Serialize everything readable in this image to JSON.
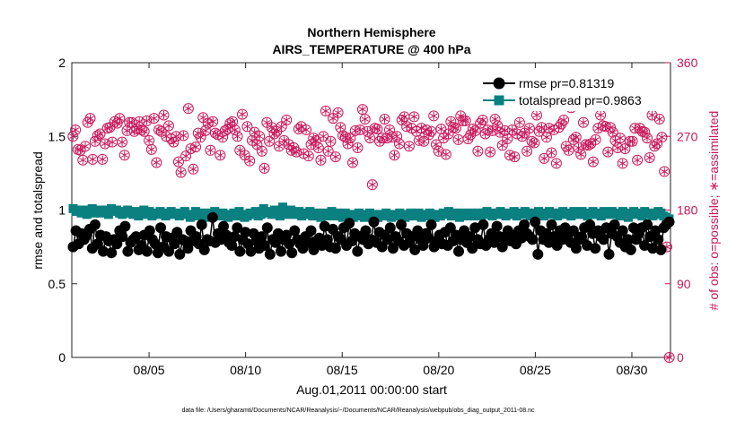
{
  "chart_data": {
    "type": "line",
    "title": "Northern Hemisphere",
    "subtitle": "AIRS_TEMPERATURE @ 400 hPa",
    "xlabel": "Aug.01,2011 00:00:00 start",
    "ylabel_left": "rmse and totalspread",
    "ylabel_right": "# of obs: o=possible; ∗=assimilated",
    "footnote": "data file: /Users/gharamti/Documents/NCAR/Reanalysis/~/Documents/NCAR/Reanalysis/webpub/obs_diag_output_2011-08.nc",
    "xlim": [
      1,
      32
    ],
    "ylim_left": [
      0,
      2
    ],
    "ylim_right": [
      0,
      360
    ],
    "x_ticks": [
      {
        "value": 5,
        "label": "08/05"
      },
      {
        "value": 10,
        "label": "08/10"
      },
      {
        "value": 15,
        "label": "08/15"
      },
      {
        "value": 20,
        "label": "08/20"
      },
      {
        "value": 25,
        "label": "08/25"
      },
      {
        "value": 30,
        "label": "08/30"
      }
    ],
    "y_ticks_left": [
      {
        "value": 0,
        "label": "0"
      },
      {
        "value": 0.5,
        "label": "0.5"
      },
      {
        "value": 1,
        "label": "1"
      },
      {
        "value": 1.5,
        "label": "1.5"
      },
      {
        "value": 2,
        "label": "2"
      }
    ],
    "y_ticks_right": [
      {
        "value": 0,
        "label": "0"
      },
      {
        "value": 90,
        "label": "90"
      },
      {
        "value": 180,
        "label": "180"
      },
      {
        "value": 270,
        "label": "270"
      },
      {
        "value": 360,
        "label": "360"
      }
    ],
    "legend_position": "top-right",
    "legend": [
      "rmse pr=0.81319",
      "totalspread pr=0.9863"
    ],
    "series": [
      {
        "name": "rmse pr=0.81319",
        "axis": "left",
        "color": "#000000",
        "values": [
          0.75,
          0.86,
          0.77,
          0.84,
          0.8,
          0.83,
          0.87,
          0.74,
          0.9,
          0.77,
          0.83,
          0.72,
          0.82,
          0.79,
          0.71,
          0.8,
          0.77,
          0.86,
          0.82,
          0.89,
          0.72,
          0.78,
          0.8,
          0.82,
          0.73,
          0.76,
          0.83,
          0.72,
          0.86,
          0.8,
          0.77,
          0.71,
          0.88,
          0.75,
          0.82,
          0.72,
          0.81,
          0.77,
          0.85,
          0.7,
          0.8,
          0.79,
          0.74,
          0.86,
          0.79,
          0.82,
          0.77,
          0.9,
          0.73,
          0.8,
          0.79,
          0.95,
          0.78,
          0.84,
          0.8,
          0.89,
          0.83,
          0.78,
          0.76,
          0.82,
          0.88,
          0.72,
          0.8,
          0.85,
          0.77,
          0.72,
          0.84,
          0.79,
          0.74,
          0.82,
          0.76,
          0.88,
          0.7,
          0.8,
          0.78,
          0.84,
          0.72,
          0.8,
          0.83,
          0.77,
          0.71,
          0.86,
          0.8,
          0.77,
          0.74,
          0.82,
          0.78,
          0.86,
          0.73,
          0.79,
          0.81,
          0.76,
          0.89,
          0.8,
          0.75,
          0.87,
          0.74,
          0.82,
          0.8,
          0.88,
          0.76,
          0.91,
          0.79,
          0.84,
          0.72,
          0.82,
          0.8,
          0.86,
          0.77,
          0.8,
          0.92,
          0.78,
          0.85,
          0.75,
          0.83,
          0.8,
          0.88,
          0.74,
          0.82,
          0.79,
          0.9,
          0.76,
          0.84,
          0.78,
          0.82,
          0.73,
          0.86,
          0.8,
          0.76,
          0.84,
          0.81,
          0.9,
          0.75,
          0.79,
          0.83,
          0.77,
          0.85,
          0.76,
          0.88,
          0.79,
          0.83,
          0.72,
          0.8,
          0.86,
          0.78,
          0.82,
          0.74,
          0.88,
          0.8,
          0.77,
          0.9,
          0.76,
          0.8,
          0.84,
          0.78,
          0.89,
          0.82,
          0.75,
          0.8,
          0.86,
          0.79,
          0.83,
          0.77,
          0.86,
          0.81,
          0.9,
          0.84,
          0.82,
          0.8,
          0.92,
          0.7,
          0.86,
          0.8,
          0.84,
          0.78,
          0.9,
          0.82,
          0.76,
          0.86,
          0.8,
          0.88,
          0.83,
          0.78,
          0.86,
          0.74,
          0.8,
          0.82,
          0.88,
          0.76,
          0.9,
          0.84,
          0.74,
          0.86,
          0.82,
          0.8,
          0.88,
          0.7,
          0.84,
          0.9,
          0.82,
          0.78,
          0.86,
          0.75,
          0.8,
          0.73,
          0.88,
          0.8,
          0.84,
          0.88,
          0.76,
          0.9,
          0.82,
          0.74,
          0.86,
          0.8,
          0.73,
          0.88,
          0.9,
          0.92
        ]
      },
      {
        "name": "totalspread pr=0.9863",
        "axis": "left",
        "color": "#0a8080",
        "values": [
          1.01,
          0.99,
          1.0,
          0.98,
          1.0,
          0.97,
          0.99,
          1.01,
          0.98,
          1.0,
          0.98,
          1.0,
          0.99,
          0.97,
          1.01,
          0.99,
          1.0,
          0.98,
          0.97,
          0.99,
          1.0,
          0.98,
          0.97,
          0.99,
          0.96,
          0.98,
          1.0,
          0.97,
          0.99,
          0.96,
          0.98,
          0.97,
          0.99,
          0.97,
          0.96,
          0.98,
          0.99,
          0.97,
          0.98,
          0.96,
          0.97,
          0.99,
          0.97,
          0.95,
          0.97,
          0.99,
          0.96,
          0.98,
          0.97,
          0.95,
          0.98,
          0.97,
          0.99,
          0.96,
          0.97,
          0.98,
          0.96,
          0.95,
          0.97,
          0.98,
          0.96,
          0.99,
          0.97,
          0.95,
          0.96,
          0.98,
          0.97,
          0.99,
          0.96,
          0.97,
          1.01,
          0.98,
          0.99,
          0.97,
          1.0,
          0.98,
          0.96,
          1.02,
          0.99,
          0.97,
          1.0,
          0.98,
          0.97,
          0.99,
          0.96,
          0.98,
          0.97,
          0.99,
          0.96,
          0.98,
          0.97,
          0.95,
          0.98,
          0.96,
          0.97,
          0.99,
          0.96,
          0.98,
          0.97,
          0.95,
          0.98,
          0.96,
          0.97,
          0.95,
          0.96,
          0.98,
          0.97,
          0.95,
          0.96,
          0.98,
          0.96,
          0.97,
          0.95,
          0.97,
          0.96,
          0.98,
          0.96,
          0.95,
          0.97,
          0.96,
          0.98,
          0.97,
          0.95,
          0.96,
          0.98,
          0.97,
          0.96,
          0.98,
          0.95,
          0.97,
          0.96,
          0.98,
          0.97,
          0.95,
          0.97,
          0.96,
          0.98,
          0.97,
          0.99,
          0.96,
          0.98,
          0.97,
          0.95,
          0.98,
          0.96,
          0.97,
          0.98,
          0.96,
          0.97,
          0.98,
          0.96,
          0.98,
          0.99,
          0.97,
          0.96,
          0.98,
          0.97,
          0.99,
          0.97,
          0.96,
          0.98,
          0.97,
          0.99,
          0.96,
          0.98,
          0.97,
          0.99,
          0.98,
          0.96,
          0.98,
          0.97,
          0.99,
          0.97,
          0.96,
          0.98,
          0.99,
          0.97,
          0.98,
          0.96,
          0.98,
          0.99,
          0.97,
          0.98,
          0.96,
          0.99,
          0.97,
          0.98,
          0.99,
          0.97,
          0.96,
          0.98,
          0.99,
          0.97,
          0.98,
          0.96,
          0.99,
          0.97,
          0.98,
          0.99,
          0.97,
          0.98,
          0.96,
          0.99,
          0.97,
          0.95,
          0.98,
          0.99,
          0.97,
          0.98,
          0.96,
          0.99,
          0.97,
          0.98,
          0.96,
          0.97,
          0.99,
          0.98,
          0.96,
          0.95,
          0.94
        ]
      },
      {
        "name": "# of obs",
        "axis": "right",
        "color": "#c8175a",
        "values": [
          270,
          278,
          254,
          253,
          241,
          258,
          287,
          292,
          242,
          264,
          271,
          273,
          242,
          261,
          280,
          281,
          263,
          288,
          286,
          292,
          263,
          247,
          277,
          287,
          287,
          276,
          279,
          288,
          278,
          276,
          289,
          265,
          254,
          292,
          238,
          278,
          276,
          296,
          270,
          283,
          267,
          263,
          270,
          239,
          226,
          271,
          246,
          304,
          255,
          230,
          257,
          274,
          269,
          293,
          277,
          286,
          253,
          288,
          274,
          272,
          247,
          269,
          277,
          279,
          286,
          288,
          278,
          270,
          253,
          297,
          247,
          282,
          240,
          265,
          275,
          260,
          270,
          252,
          231,
          287,
          264,
          281,
          273,
          276,
          258,
          282,
          265,
          290,
          260,
          253,
          256,
          251,
          279,
          282,
          249,
          278,
          246,
          260,
          268,
          265,
          256,
          241,
          270,
          301,
          252,
          264,
          292,
          245,
          299,
          281,
          271,
          269,
          261,
          268,
          238,
          277,
          256,
          278,
          303,
          291,
          276,
          268,
          211,
          280,
          279,
          264,
          268,
          291,
          268,
          278,
          269,
          247,
          270,
          261,
          290,
          294,
          282,
          258,
          280,
          294,
          276,
          265,
          280,
          264,
          278,
          272,
          276,
          295,
          260,
          252,
          279,
          268,
          248,
          273,
          288,
          281,
          280,
          266,
          295,
          289,
          289,
          267,
          272,
          279,
          277,
          252,
          286,
          290,
          273,
          278,
          251,
          277,
          291,
          283,
          275,
          259,
          277,
          267,
          247,
          278,
          245,
          273,
          287,
          270,
          274,
          252,
          280,
          264,
          262,
          296,
          276,
          281,
          243,
          269,
          280,
          250,
          278,
          237,
          281,
          285,
          290,
          258,
          253,
          305,
          266,
          269,
          256,
          248,
          287,
          260,
          259,
          261,
          239,
          266,
          280,
          296,
          283,
          282,
          251,
          281,
          275,
          265,
          256,
          268,
          237,
          255,
          310,
          264,
          264,
          280,
          241,
          280,
          276,
          275,
          268,
          244,
          296,
          258,
          261,
          291,
          269,
          227,
          135,
          0
        ]
      }
    ]
  }
}
